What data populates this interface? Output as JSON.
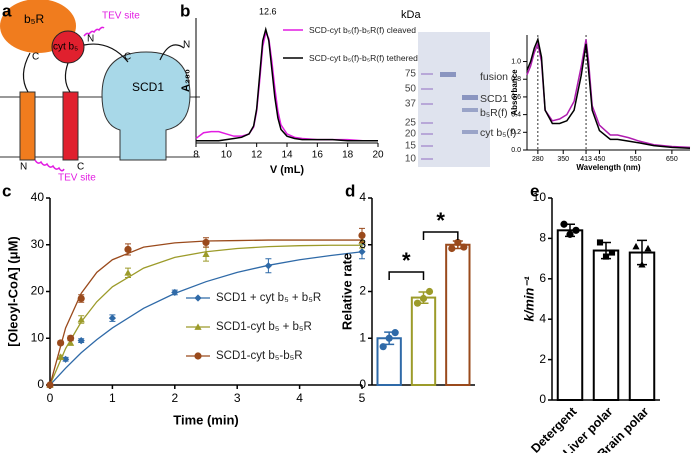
{
  "panel_labels": [
    "a",
    "b",
    "c",
    "d",
    "e"
  ],
  "diagram": {
    "b5R": "b₅R",
    "cyt_b5": "cyt b₅",
    "tev_top": "TEV site",
    "tev_bottom": "TEV site",
    "scd1": "SCD1",
    "termini": [
      "C",
      "N",
      "C",
      "N",
      "N",
      "C"
    ]
  },
  "gel": {
    "unit": "kDa",
    "ladder": [
      75,
      50,
      37,
      25,
      20,
      15,
      10
    ],
    "bands": [
      "fusion",
      "SCD1",
      "b₅R(f)",
      "cyt b₅(f)"
    ]
  },
  "chart_data": [
    {
      "type": "line",
      "peak_label": "12.6",
      "x_label": "V (mL)",
      "y_label": "A₂₈₀",
      "x": [
        8,
        8.5,
        9,
        9.5,
        10,
        10.5,
        11,
        11.5,
        11.8,
        12,
        12.2,
        12.4,
        12.6,
        12.8,
        13,
        13.2,
        13.4,
        13.6,
        14,
        14.5,
        15,
        16,
        17,
        18,
        19,
        20
      ],
      "xlim": [
        8,
        20
      ],
      "xticks": [
        8,
        10,
        12,
        14,
        16,
        18,
        20
      ],
      "ylim": [
        0,
        1.1
      ],
      "series": [
        {
          "name": "SCD-cyt b₅(f)-b₅R(f) cleaved",
          "color": "#e21ce2",
          "values": [
            0.04,
            0.09,
            0.1,
            0.1,
            0.08,
            0.06,
            0.06,
            0.08,
            0.14,
            0.28,
            0.55,
            0.85,
            0.97,
            0.92,
            0.72,
            0.48,
            0.28,
            0.16,
            0.08,
            0.05,
            0.04,
            0.03,
            0.03,
            0.03,
            0.02,
            0.02
          ]
        },
        {
          "name": "SCD-cyt b₅(f)-b₅R(f) tethered",
          "color": "#000000",
          "values": [
            0.02,
            0.02,
            0.02,
            0.02,
            0.03,
            0.04,
            0.05,
            0.08,
            0.15,
            0.3,
            0.6,
            0.9,
            1.0,
            0.9,
            0.65,
            0.4,
            0.22,
            0.12,
            0.06,
            0.04,
            0.03,
            0.03,
            0.03,
            0.02,
            0.02,
            0.02
          ]
        }
      ]
    },
    {
      "type": "line",
      "x_label": "Wavelength (nm)",
      "y_label": "Absorbance",
      "x": [
        250,
        260,
        270,
        280,
        290,
        300,
        320,
        340,
        360,
        380,
        400,
        413,
        420,
        430,
        450,
        480,
        500,
        530,
        560,
        600,
        650,
        700
      ],
      "xlim": [
        250,
        700
      ],
      "xticks": [
        280,
        350,
        413,
        450,
        550,
        650
      ],
      "ylim": [
        0,
        1.3
      ],
      "yticks": [
        {
          "value": 0,
          "label": "0.0"
        },
        {
          "value": 0.2,
          "label": "0.2"
        },
        {
          "value": 0.4,
          "label": "0.4"
        },
        {
          "value": 0.6,
          "label": "0.6"
        },
        {
          "value": 0.8,
          "label": "0.8"
        },
        {
          "value": 1,
          "label": "1.0"
        }
      ],
      "reference_lines": [
        280,
        413
      ],
      "series": [
        {
          "color": "#b01cb0",
          "values": [
            0.85,
            0.95,
            1.1,
            1.2,
            1.0,
            0.45,
            0.33,
            0.35,
            0.4,
            0.55,
            0.95,
            1.25,
            1.0,
            0.5,
            0.28,
            0.17,
            0.17,
            0.14,
            0.1,
            0.06,
            0.04,
            0.03
          ]
        },
        {
          "color": "#000000",
          "values": [
            0.9,
            1.0,
            1.15,
            1.25,
            1.05,
            0.45,
            0.3,
            0.3,
            0.33,
            0.45,
            0.85,
            1.2,
            0.9,
            0.45,
            0.22,
            0.12,
            0.12,
            0.1,
            0.08,
            0.05,
            0.03,
            0.02
          ]
        }
      ]
    },
    {
      "type": "scatter",
      "x_label": "Time (min)",
      "y_label": "[Oleoyl-CoA] (μM)",
      "xlim": [
        0,
        5
      ],
      "xticks": [
        0,
        1,
        2,
        3,
        4,
        5
      ],
      "ylim": [
        0,
        40
      ],
      "yticks": [
        0,
        10,
        20,
        30,
        40
      ],
      "series": [
        {
          "name": "SCD1 + cyt b₅ + b₅R",
          "color": "#2f6aa8",
          "marker": "diamond",
          "x": [
            0,
            0.25,
            0.5,
            1,
            2,
            3.5,
            5
          ],
          "values": [
            0,
            5.5,
            9.5,
            14.3,
            19.8,
            25.5,
            28.5
          ],
          "errors": [
            0,
            0.4,
            0.4,
            0.7,
            0.5,
            1.5,
            1.5
          ],
          "fit": {
            "x": [
              0,
              0.25,
              0.5,
              0.75,
              1,
              1.5,
              2,
              2.5,
              3,
              3.5,
              4,
              4.5,
              5
            ],
            "values": [
              0,
              3.6,
              6.9,
              9.7,
              12.2,
              16.4,
              19.6,
              22.1,
              24.1,
              25.6,
              26.8,
              27.7,
              28.5
            ]
          }
        },
        {
          "name": "SCD1-cyt b₅ + b₅R",
          "color": "#9c9b2a",
          "marker": "triangle",
          "x": [
            0,
            0.17,
            0.33,
            0.5,
            1.25,
            2.5,
            5
          ],
          "values": [
            0,
            6,
            9,
            14,
            24,
            28,
            30.8
          ],
          "errors": [
            0,
            0.4,
            0.5,
            0.8,
            1,
            1.5,
            1.5
          ],
          "fit": {
            "x": [
              0,
              0.25,
              0.5,
              0.75,
              1,
              1.5,
              2,
              2.5,
              3,
              3.5,
              4,
              4.5,
              5
            ],
            "values": [
              0,
              7.8,
              13.5,
              17.8,
              21,
              25,
              27.3,
              28.5,
              29.2,
              29.6,
              29.8,
              29.9,
              29.9
            ]
          }
        },
        {
          "name": "SCD1-cyt b₅-b₅R",
          "color": "#9a4a1c",
          "marker": "circle",
          "x": [
            0,
            0.17,
            0.33,
            0.5,
            1.25,
            2.5,
            5
          ],
          "values": [
            0,
            9,
            10,
            18.5,
            29,
            30.5,
            32
          ],
          "errors": [
            0,
            0.4,
            0.5,
            0.8,
            1.2,
            1,
            1.5
          ],
          "fit": {
            "x": [
              0,
              0.25,
              0.5,
              0.75,
              1,
              1.5,
              2,
              2.5,
              3,
              3.5,
              4,
              4.5,
              5
            ],
            "values": [
              0,
              12.2,
              19.6,
              24.1,
              26.8,
              29.5,
              30.4,
              30.8,
              30.9,
              31,
              31,
              31,
              31
            ]
          }
        }
      ]
    },
    {
      "type": "bar",
      "y_label": "Relative rate",
      "categories": [
        null,
        null,
        null
      ],
      "values": [
        1,
        1.87,
        3
      ],
      "errors": [
        0.13,
        0.12,
        0.08
      ],
      "colors": [
        "#2f6aa8",
        "#9c9b2a",
        "#9a4a1c"
      ],
      "points": [
        [
          0.82,
          1.0,
          1.12
        ],
        [
          1.75,
          1.85,
          2.0
        ],
        [
          2.92,
          3.05,
          2.95
        ]
      ],
      "ylim": [
        0,
        4
      ],
      "yticks": [
        0,
        1,
        2,
        3,
        4
      ],
      "annotations": [
        "*",
        "*"
      ]
    },
    {
      "type": "bar",
      "y_label": "k/min⁻¹",
      "categories": [
        "Detergent",
        "Liver polar",
        "Brain polar"
      ],
      "values": [
        8.4,
        7.4,
        7.3
      ],
      "errors": [
        0.3,
        0.4,
        0.6
      ],
      "colors": [
        "#000000",
        "#000000",
        "#000000"
      ],
      "points": [
        [
          8.7,
          8.2,
          8.4
        ],
        [
          7.8,
          7.1,
          7.3
        ],
        [
          7.6,
          6.7,
          7.5
        ]
      ],
      "point_markers": [
        "circle",
        "square",
        "triangle"
      ],
      "ylim": [
        0,
        10
      ],
      "yticks": [
        0,
        2,
        4,
        6,
        8,
        10
      ]
    }
  ]
}
